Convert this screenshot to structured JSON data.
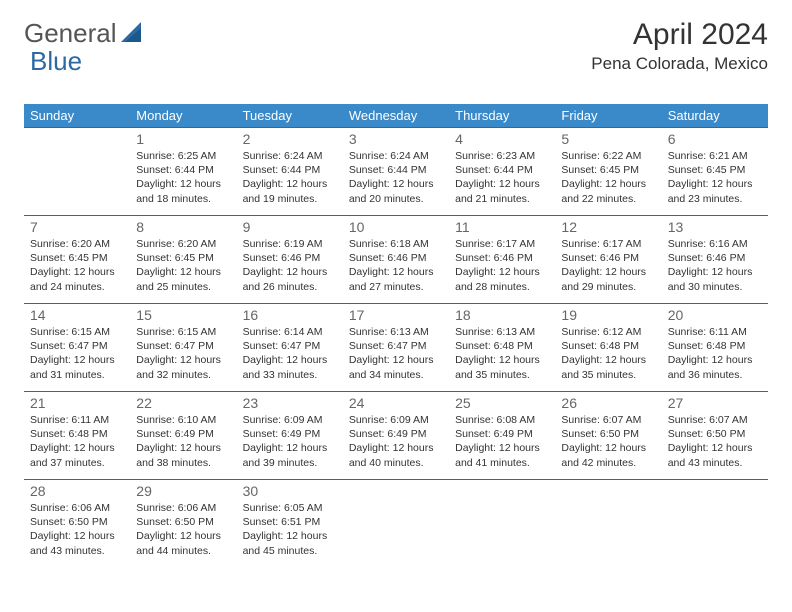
{
  "brand": {
    "part1": "General",
    "part2": "Blue"
  },
  "title": "April 2024",
  "location": "Pena Colorada, Mexico",
  "header_bg": "#3a89c9",
  "border_color": "#2d6aa3",
  "daynum_color": "#666666",
  "text_color": "#333333",
  "days_of_week": [
    "Sunday",
    "Monday",
    "Tuesday",
    "Wednesday",
    "Thursday",
    "Friday",
    "Saturday"
  ],
  "labels": {
    "sunrise": "Sunrise:",
    "sunset": "Sunset:",
    "daylight": "Daylight:"
  },
  "weeks": [
    [
      null,
      {
        "n": "1",
        "sr": "6:25 AM",
        "ss": "6:44 PM",
        "dl": "12 hours and 18 minutes."
      },
      {
        "n": "2",
        "sr": "6:24 AM",
        "ss": "6:44 PM",
        "dl": "12 hours and 19 minutes."
      },
      {
        "n": "3",
        "sr": "6:24 AM",
        "ss": "6:44 PM",
        "dl": "12 hours and 20 minutes."
      },
      {
        "n": "4",
        "sr": "6:23 AM",
        "ss": "6:44 PM",
        "dl": "12 hours and 21 minutes."
      },
      {
        "n": "5",
        "sr": "6:22 AM",
        "ss": "6:45 PM",
        "dl": "12 hours and 22 minutes."
      },
      {
        "n": "6",
        "sr": "6:21 AM",
        "ss": "6:45 PM",
        "dl": "12 hours and 23 minutes."
      }
    ],
    [
      {
        "n": "7",
        "sr": "6:20 AM",
        "ss": "6:45 PM",
        "dl": "12 hours and 24 minutes."
      },
      {
        "n": "8",
        "sr": "6:20 AM",
        "ss": "6:45 PM",
        "dl": "12 hours and 25 minutes."
      },
      {
        "n": "9",
        "sr": "6:19 AM",
        "ss": "6:46 PM",
        "dl": "12 hours and 26 minutes."
      },
      {
        "n": "10",
        "sr": "6:18 AM",
        "ss": "6:46 PM",
        "dl": "12 hours and 27 minutes."
      },
      {
        "n": "11",
        "sr": "6:17 AM",
        "ss": "6:46 PM",
        "dl": "12 hours and 28 minutes."
      },
      {
        "n": "12",
        "sr": "6:17 AM",
        "ss": "6:46 PM",
        "dl": "12 hours and 29 minutes."
      },
      {
        "n": "13",
        "sr": "6:16 AM",
        "ss": "6:46 PM",
        "dl": "12 hours and 30 minutes."
      }
    ],
    [
      {
        "n": "14",
        "sr": "6:15 AM",
        "ss": "6:47 PM",
        "dl": "12 hours and 31 minutes."
      },
      {
        "n": "15",
        "sr": "6:15 AM",
        "ss": "6:47 PM",
        "dl": "12 hours and 32 minutes."
      },
      {
        "n": "16",
        "sr": "6:14 AM",
        "ss": "6:47 PM",
        "dl": "12 hours and 33 minutes."
      },
      {
        "n": "17",
        "sr": "6:13 AM",
        "ss": "6:47 PM",
        "dl": "12 hours and 34 minutes."
      },
      {
        "n": "18",
        "sr": "6:13 AM",
        "ss": "6:48 PM",
        "dl": "12 hours and 35 minutes."
      },
      {
        "n": "19",
        "sr": "6:12 AM",
        "ss": "6:48 PM",
        "dl": "12 hours and 35 minutes."
      },
      {
        "n": "20",
        "sr": "6:11 AM",
        "ss": "6:48 PM",
        "dl": "12 hours and 36 minutes."
      }
    ],
    [
      {
        "n": "21",
        "sr": "6:11 AM",
        "ss": "6:48 PM",
        "dl": "12 hours and 37 minutes."
      },
      {
        "n": "22",
        "sr": "6:10 AM",
        "ss": "6:49 PM",
        "dl": "12 hours and 38 minutes."
      },
      {
        "n": "23",
        "sr": "6:09 AM",
        "ss": "6:49 PM",
        "dl": "12 hours and 39 minutes."
      },
      {
        "n": "24",
        "sr": "6:09 AM",
        "ss": "6:49 PM",
        "dl": "12 hours and 40 minutes."
      },
      {
        "n": "25",
        "sr": "6:08 AM",
        "ss": "6:49 PM",
        "dl": "12 hours and 41 minutes."
      },
      {
        "n": "26",
        "sr": "6:07 AM",
        "ss": "6:50 PM",
        "dl": "12 hours and 42 minutes."
      },
      {
        "n": "27",
        "sr": "6:07 AM",
        "ss": "6:50 PM",
        "dl": "12 hours and 43 minutes."
      }
    ],
    [
      {
        "n": "28",
        "sr": "6:06 AM",
        "ss": "6:50 PM",
        "dl": "12 hours and 43 minutes."
      },
      {
        "n": "29",
        "sr": "6:06 AM",
        "ss": "6:50 PM",
        "dl": "12 hours and 44 minutes."
      },
      {
        "n": "30",
        "sr": "6:05 AM",
        "ss": "6:51 PM",
        "dl": "12 hours and 45 minutes."
      },
      null,
      null,
      null,
      null
    ]
  ]
}
